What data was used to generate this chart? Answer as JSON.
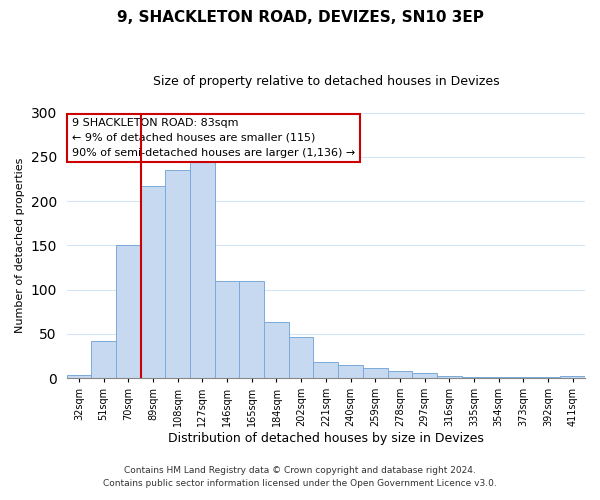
{
  "title": "9, SHACKLETON ROAD, DEVIZES, SN10 3EP",
  "subtitle": "Size of property relative to detached houses in Devizes",
  "xlabel": "Distribution of detached houses by size in Devizes",
  "ylabel": "Number of detached properties",
  "bar_labels": [
    "32sqm",
    "51sqm",
    "70sqm",
    "89sqm",
    "108sqm",
    "127sqm",
    "146sqm",
    "165sqm",
    "184sqm",
    "202sqm",
    "221sqm",
    "240sqm",
    "259sqm",
    "278sqm",
    "297sqm",
    "316sqm",
    "335sqm",
    "354sqm",
    "373sqm",
    "392sqm",
    "411sqm"
  ],
  "bar_values": [
    3,
    42,
    150,
    217,
    235,
    246,
    110,
    110,
    63,
    46,
    18,
    15,
    11,
    8,
    6,
    2,
    1,
    1,
    1,
    1,
    2
  ],
  "bar_color": "#c6d9f0",
  "bar_edge_color": "#7aaadb",
  "vline_x_index": 3,
  "vline_color": "#cc0000",
  "annotation_lines": [
    "9 SHACKLETON ROAD: 83sqm",
    "← 9% of detached houses are smaller (115)",
    "90% of semi-detached houses are larger (1,136) →"
  ],
  "annotation_box_color": "#ffffff",
  "annotation_box_edge": "#cc0000",
  "ylim": [
    0,
    300
  ],
  "yticks": [
    0,
    50,
    100,
    150,
    200,
    250,
    300
  ],
  "footer_line1": "Contains HM Land Registry data © Crown copyright and database right 2024.",
  "footer_line2": "Contains public sector information licensed under the Open Government Licence v3.0.",
  "bg_color": "#ffffff",
  "grid_color": "#d4e6f5",
  "title_fontsize": 11,
  "subtitle_fontsize": 9,
  "xlabel_fontsize": 9,
  "ylabel_fontsize": 8,
  "tick_fontsize": 7,
  "footer_fontsize": 6.5,
  "ann_fontsize": 8
}
